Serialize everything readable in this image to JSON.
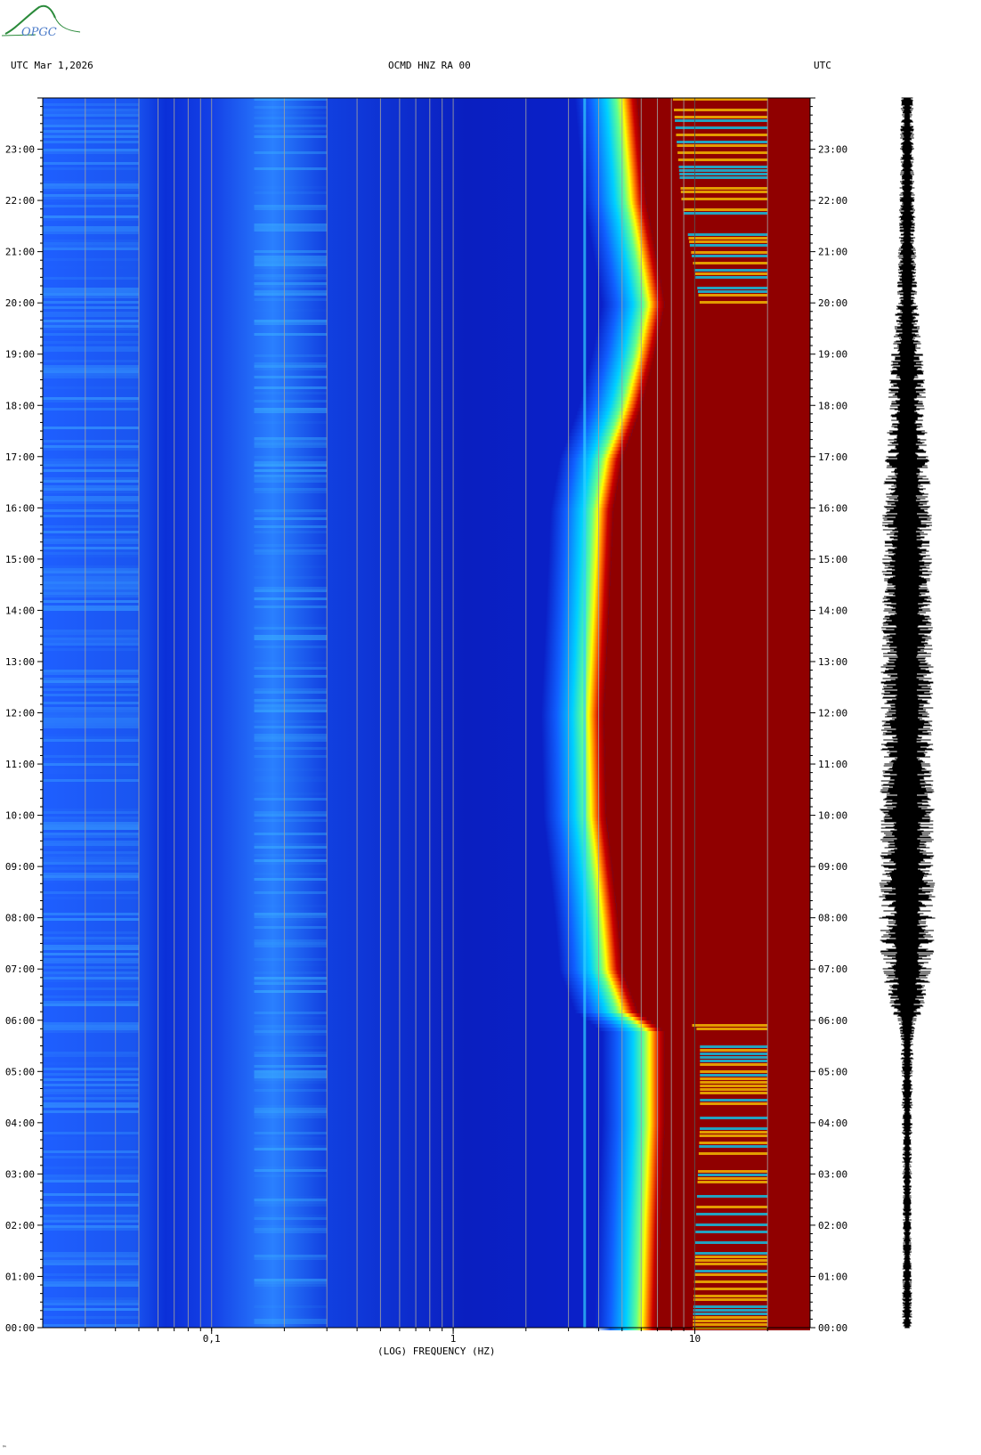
{
  "header": {
    "logo_text": "OPGC",
    "left_label": "UTC  Mar 1,2026",
    "center_label": "OCMD HNZ RA 00",
    "right_label": "UTC"
  },
  "chart_data": {
    "type": "heatmap",
    "title": "OCMD HNZ RA 00",
    "date": "Mar 1,2026",
    "xlabel": "(LOG) FREQUENCY (HZ)",
    "x_scale": "log",
    "xlim": [
      0.02,
      30
    ],
    "x_ticks": [
      {
        "value": 0.1,
        "label": "0,1"
      },
      {
        "value": 1,
        "label": "1"
      },
      {
        "value": 10,
        "label": "10"
      }
    ],
    "x_gridlines": [
      0.03,
      0.04,
      0.05,
      0.06,
      0.07,
      0.08,
      0.09,
      0.1,
      0.2,
      0.3,
      0.4,
      0.5,
      0.6,
      0.7,
      0.8,
      0.9,
      1,
      2,
      3,
      4,
      5,
      6,
      7,
      8,
      9,
      10,
      20
    ],
    "ylabel": "UTC",
    "y_ticks": [
      "00:00",
      "01:00",
      "02:00",
      "03:00",
      "04:00",
      "05:00",
      "06:00",
      "07:00",
      "08:00",
      "09:00",
      "10:00",
      "11:00",
      "12:00",
      "13:00",
      "14:00",
      "15:00",
      "16:00",
      "17:00",
      "18:00",
      "19:00",
      "20:00",
      "21:00",
      "22:00",
      "23:00"
    ],
    "ylim_hours": [
      0,
      24
    ],
    "colormap": [
      "#0000a0",
      "#0020e0",
      "#0070ff",
      "#00d0ff",
      "#80ff80",
      "#ffff00",
      "#ff8000",
      "#d00000",
      "#900000"
    ],
    "saturation_edge_hz": [
      {
        "hour": 0,
        "freq": 7.0
      },
      {
        "hour": 2,
        "freq": 7.2
      },
      {
        "hour": 4,
        "freq": 7.5
      },
      {
        "hour": 5.8,
        "freq": 7.5
      },
      {
        "hour": 6.2,
        "freq": 5.8
      },
      {
        "hour": 7,
        "freq": 5.0
      },
      {
        "hour": 8,
        "freq": 4.8
      },
      {
        "hour": 10,
        "freq": 4.3
      },
      {
        "hour": 12,
        "freq": 4.2
      },
      {
        "hour": 14,
        "freq": 4.4
      },
      {
        "hour": 16,
        "freq": 4.6
      },
      {
        "hour": 17,
        "freq": 5.0
      },
      {
        "hour": 18,
        "freq": 6.0
      },
      {
        "hour": 19,
        "freq": 6.8
      },
      {
        "hour": 20,
        "freq": 7.5
      },
      {
        "hour": 22,
        "freq": 6.3
      },
      {
        "hour": 24,
        "freq": 5.8
      }
    ],
    "waveform_envelope": [
      {
        "hour": 0,
        "amp": 0.15
      },
      {
        "hour": 2,
        "amp": 0.12
      },
      {
        "hour": 4,
        "amp": 0.15
      },
      {
        "hour": 5.8,
        "amp": 0.2
      },
      {
        "hour": 6.2,
        "amp": 0.45
      },
      {
        "hour": 7,
        "amp": 0.75
      },
      {
        "hour": 8,
        "amp": 0.8
      },
      {
        "hour": 12,
        "amp": 0.75
      },
      {
        "hour": 16,
        "amp": 0.7
      },
      {
        "hour": 18,
        "amp": 0.55
      },
      {
        "hour": 19,
        "amp": 0.45
      },
      {
        "hour": 20,
        "amp": 0.3
      },
      {
        "hour": 22,
        "amp": 0.22
      },
      {
        "hour": 24,
        "amp": 0.18
      }
    ]
  },
  "footer": {
    "mark": "™"
  }
}
